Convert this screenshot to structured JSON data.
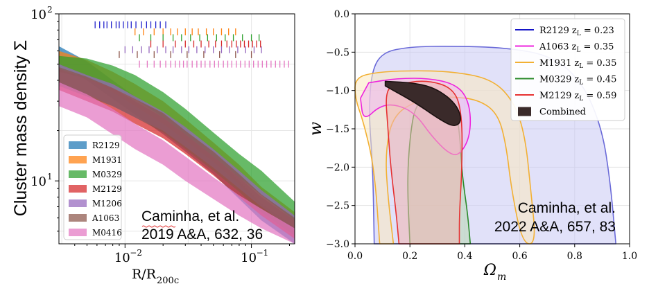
{
  "chart_data": [
    {
      "type": "area",
      "xlabel": "R/R",
      "xlabel_sub": "200c",
      "ylabel": "Cluster mass density Σ",
      "xscale": "log",
      "yscale": "log",
      "xlim": [
        0.003,
        0.22
      ],
      "ylim": [
        4.2,
        100
      ],
      "x_ticks": [
        {
          "v": 0.01,
          "base": "10",
          "exp": "−2"
        },
        {
          "v": 0.1,
          "base": "10",
          "exp": "−1"
        }
      ],
      "y_ticks": [
        {
          "v": 10,
          "base": "10",
          "exp": "1"
        },
        {
          "v": 100,
          "base": "10",
          "exp": "2"
        }
      ],
      "x_grid": [
        0.00316,
        0.01,
        0.0316,
        0.1
      ],
      "y_grid": [
        5,
        10,
        20,
        50,
        100
      ],
      "legend_position": "lower-left",
      "series": [
        {
          "name": "R2129",
          "color": "#1f77b4",
          "x": [
            0.003,
            0.005,
            0.008,
            0.012,
            0.02,
            0.03,
            0.05,
            0.08,
            0.12,
            0.22
          ],
          "lo": [
            50,
            40,
            31,
            25,
            19,
            15,
            11,
            7.8,
            5.8,
            4.2
          ],
          "hi": [
            64,
            52,
            40,
            32,
            25,
            20,
            14.5,
            10,
            7.3,
            5.3
          ]
        },
        {
          "name": "M1931",
          "color": "#ff7f0e",
          "x": [
            0.003,
            0.005,
            0.008,
            0.012,
            0.02,
            0.03,
            0.05,
            0.08,
            0.12,
            0.22
          ],
          "lo": [
            48,
            41,
            34,
            28,
            22,
            17.5,
            13,
            9.5,
            7,
            5
          ],
          "hi": [
            60,
            53,
            45,
            38,
            30,
            23.5,
            17,
            12.5,
            9.2,
            6.5
          ]
        },
        {
          "name": "M0329",
          "color": "#2ca02c",
          "x": [
            0.003,
            0.005,
            0.008,
            0.012,
            0.02,
            0.03,
            0.05,
            0.08,
            0.12,
            0.22
          ],
          "lo": [
            45,
            41,
            36,
            31,
            24,
            19,
            14,
            10.5,
            8.2,
            5.8
          ],
          "hi": [
            56,
            54,
            49,
            43,
            34,
            27,
            19.5,
            14.5,
            11.5,
            7.5
          ]
        },
        {
          "name": "M2129",
          "color": "#d62728",
          "x": [
            0.003,
            0.005,
            0.008,
            0.012,
            0.02,
            0.03,
            0.05,
            0.08,
            0.12,
            0.22
          ],
          "lo": [
            35,
            30,
            26,
            22,
            18,
            14.5,
            10.8,
            8,
            6.2,
            4.5
          ],
          "hi": [
            47,
            41,
            36,
            30,
            24,
            19,
            14,
            10.5,
            8,
            5.8
          ]
        },
        {
          "name": "M1206",
          "color": "#9467bd",
          "x": [
            0.003,
            0.005,
            0.008,
            0.012,
            0.02,
            0.03,
            0.05,
            0.08,
            0.12,
            0.22
          ],
          "lo": [
            38,
            33,
            28,
            24,
            20,
            16,
            12,
            9,
            7,
            5
          ],
          "hi": [
            50,
            43,
            38,
            32,
            26,
            21,
            15.5,
            11.5,
            8.8,
            6.2
          ]
        },
        {
          "name": "A1063",
          "color": "#8c564b",
          "x": [
            0.003,
            0.005,
            0.008,
            0.012,
            0.02,
            0.03,
            0.05,
            0.08,
            0.12,
            0.22
          ],
          "lo": [
            37,
            32,
            28,
            24,
            19.5,
            15.5,
            11.5,
            8.6,
            6.5,
            4.7
          ],
          "hi": [
            48,
            42,
            36,
            31,
            25.5,
            20,
            15,
            11,
            8.3,
            6
          ]
        },
        {
          "name": "M0416",
          "color": "#e377c2",
          "x": [
            0.003,
            0.005,
            0.008,
            0.012,
            0.02,
            0.03,
            0.05,
            0.08,
            0.12,
            0.22
          ],
          "lo": [
            28,
            24,
            19,
            15.5,
            12.5,
            10,
            7.8,
            6.2,
            5.2,
            4.2
          ],
          "hi": [
            39,
            33,
            27,
            22,
            17.5,
            14,
            10.5,
            8.2,
            6.8,
            5.2
          ]
        }
      ],
      "rug": [
        {
          "color": "#2222cc",
          "y": 86,
          "x": [
            0.0058,
            0.0063,
            0.0068,
            0.0072,
            0.0078,
            0.0085,
            0.009,
            0.0097,
            0.0105,
            0.0112,
            0.0122,
            0.0135,
            0.0148,
            0.016,
            0.0175,
            0.019,
            0.021
          ]
        },
        {
          "color": "#ff7f0e",
          "y": 78,
          "x": [
            0.012,
            0.014,
            0.017,
            0.02,
            0.023,
            0.026,
            0.03,
            0.034,
            0.038,
            0.044,
            0.05,
            0.058,
            0.066,
            0.075
          ]
        },
        {
          "color": "#2ca02c",
          "y": 72,
          "x": [
            0.013,
            0.016,
            0.02,
            0.024,
            0.028,
            0.033,
            0.039,
            0.045,
            0.053,
            0.062,
            0.072,
            0.085,
            0.1,
            0.115
          ]
        },
        {
          "color": "#d62728",
          "y": 66,
          "x": [
            0.016,
            0.02,
            0.025,
            0.03,
            0.035,
            0.04,
            0.046,
            0.052,
            0.058,
            0.064,
            0.07,
            0.076,
            0.082,
            0.088,
            0.095,
            0.102,
            0.11,
            0.118
          ]
        },
        {
          "color": "#9467bd",
          "y": 61,
          "x": [
            0.01,
            0.0115,
            0.0135,
            0.0155,
            0.018,
            0.021,
            0.024,
            0.028,
            0.032,
            0.037,
            0.043,
            0.05,
            0.058,
            0.067,
            0.078,
            0.09,
            0.105,
            0.12
          ]
        },
        {
          "color": "#8c564b",
          "y": 57,
          "x": [
            0.009,
            0.0125,
            0.017,
            0.023,
            0.031,
            0.042,
            0.056,
            0.075,
            0.1
          ]
        },
        {
          "color": "#e377c2",
          "y": 50,
          "x": [
            0.013,
            0.015,
            0.017,
            0.019,
            0.021,
            0.023,
            0.025,
            0.027,
            0.029,
            0.031,
            0.034,
            0.037,
            0.04,
            0.043,
            0.047,
            0.051,
            0.055,
            0.06,
            0.065,
            0.07,
            0.076,
            0.082,
            0.089,
            0.096,
            0.104,
            0.113,
            0.122,
            0.132,
            0.143,
            0.155,
            0.168,
            0.182,
            0.197
          ]
        }
      ],
      "annotation": [
        "Caminha, et al.",
        "2019 A&A, 632, 36"
      ]
    },
    {
      "type": "area",
      "xlabel": "Ω",
      "xlabel_sub": "m",
      "ylabel": "w",
      "xlim": [
        0,
        1
      ],
      "ylim": [
        -3,
        0
      ],
      "x_ticks": [
        0.0,
        0.2,
        0.4,
        0.6,
        0.8,
        1.0
      ],
      "x_tick_labels": [
        "0.0",
        "0.2",
        "0.4",
        "0.6",
        "0.8",
        "1.0"
      ],
      "y_ticks": [
        0.0,
        -0.5,
        -1.0,
        -1.5,
        -2.0,
        -2.5,
        -3.0
      ],
      "y_tick_labels": [
        "0.0",
        "−0.5",
        "−1.0",
        "−1.5",
        "−2.0",
        "−2.5",
        "−3.0"
      ],
      "grid": true,
      "legend_position": "upper-right",
      "legend": [
        {
          "cluster": "R2129",
          "z_sym": "z",
          "z_sub": "L",
          "z_val": " = 0.23",
          "color": "#1515c8",
          "kind": "line"
        },
        {
          "cluster": "A1063",
          "z_sym": "z",
          "z_sub": "L",
          "z_val": " = 0.35",
          "color": "#ee22dd",
          "kind": "line"
        },
        {
          "cluster": "M1931",
          "z_sym": "z",
          "z_sub": "L",
          "z_val": " = 0.35",
          "color": "#f2b033",
          "kind": "line"
        },
        {
          "cluster": "M0329",
          "z_sym": "z",
          "z_sub": "L",
          "z_val": " = 0.45",
          "color": "#2a8a2a",
          "kind": "line"
        },
        {
          "cluster": "M2129",
          "z_sym": "z",
          "z_sub": "L",
          "z_val": " = 0.59",
          "color": "#e63030",
          "kind": "line"
        },
        {
          "cluster": "Combined",
          "z_sym": "",
          "z_sub": "",
          "z_val": "",
          "color": "#3a2a2a",
          "kind": "patch"
        }
      ],
      "contours": [
        {
          "cluster": "R2129",
          "fill": "#c8c8f4",
          "stroke": "#6a6ad8",
          "outline": [
            [
              0.07,
              -3.0
            ],
            [
              0.065,
              -2.0
            ],
            [
              0.05,
              -1.3
            ],
            [
              0.06,
              -0.75
            ],
            [
              0.1,
              -0.5
            ],
            [
              0.2,
              -0.43
            ],
            [
              0.35,
              -0.42
            ],
            [
              0.55,
              -0.44
            ],
            [
              0.72,
              -0.55
            ],
            [
              0.83,
              -0.9
            ],
            [
              0.9,
              -1.5
            ],
            [
              0.93,
              -2.2
            ],
            [
              0.95,
              -3.0
            ]
          ]
        },
        {
          "cluster": "M1931",
          "fill": "#fbeac0",
          "stroke": "#f2b033",
          "outline": [
            [
              0.09,
              -3.0
            ],
            [
              0.07,
              -2.0
            ],
            [
              0.03,
              -1.4
            ],
            [
              0.0,
              -1.1
            ],
            [
              0.0,
              -0.83
            ],
            [
              0.08,
              -0.76
            ],
            [
              0.2,
              -0.74
            ],
            [
              0.35,
              -0.75
            ],
            [
              0.5,
              -0.85
            ],
            [
              0.58,
              -1.15
            ],
            [
              0.62,
              -1.6
            ],
            [
              0.64,
              -2.3
            ],
            [
              0.66,
              -3.0
            ],
            [
              0.61,
              -3.0
            ],
            [
              0.57,
              -2.3
            ],
            [
              0.55,
              -1.7
            ],
            [
              0.52,
              -1.3
            ],
            [
              0.45,
              -1.12
            ],
            [
              0.35,
              -1.08
            ],
            [
              0.25,
              -1.1
            ],
            [
              0.14,
              -1.3
            ],
            [
              0.11,
              -1.8
            ],
            [
              0.12,
              -2.4
            ],
            [
              0.14,
              -3.0
            ]
          ]
        },
        {
          "cluster": "M0329",
          "fill": "#b9d9b2",
          "stroke": "#2a8a2a",
          "outline": [
            [
              0.2,
              -3.0
            ],
            [
              0.19,
              -2.2
            ],
            [
              0.2,
              -1.6
            ],
            [
              0.22,
              -1.18
            ],
            [
              0.28,
              -1.02
            ],
            [
              0.36,
              -1.1
            ],
            [
              0.38,
              -1.5
            ],
            [
              0.39,
              -2.1
            ],
            [
              0.41,
              -2.6
            ],
            [
              0.42,
              -3.0
            ]
          ]
        },
        {
          "cluster": "A1063",
          "fill": "#f0b8ee",
          "stroke": "#ee22dd",
          "outline": [
            [
              0.02,
              -1.1
            ],
            [
              0.03,
              -1.4
            ],
            [
              0.09,
              -1.2
            ],
            [
              0.15,
              -1.18
            ],
            [
              0.22,
              -1.3
            ],
            [
              0.28,
              -1.6
            ],
            [
              0.34,
              -1.82
            ],
            [
              0.38,
              -1.85
            ],
            [
              0.42,
              -1.6
            ],
            [
              0.42,
              -1.2
            ],
            [
              0.38,
              -0.94
            ],
            [
              0.28,
              -0.84
            ],
            [
              0.15,
              -0.84
            ],
            [
              0.05,
              -0.9
            ]
          ]
        },
        {
          "cluster": "M2129",
          "fill": "#f0b4ae",
          "stroke": "#e63030",
          "outline": [
            [
              0.16,
              -3.0
            ],
            [
              0.15,
              -2.6
            ],
            [
              0.13,
              -2.0
            ],
            [
              0.12,
              -1.5
            ],
            [
              0.11,
              -1.0
            ],
            [
              0.15,
              -0.92
            ],
            [
              0.26,
              -0.86
            ],
            [
              0.36,
              -0.97
            ],
            [
              0.39,
              -1.3
            ],
            [
              0.39,
              -2.0
            ],
            [
              0.38,
              -2.6
            ],
            [
              0.38,
              -3.0
            ]
          ]
        },
        {
          "cluster": "Combined",
          "fill": "#3a2a2a",
          "stroke": "#1a1010",
          "outline": [
            [
              0.11,
              -0.88
            ],
            [
              0.22,
              -0.9
            ],
            [
              0.3,
              -0.98
            ],
            [
              0.37,
              -1.18
            ],
            [
              0.39,
              -1.4
            ],
            [
              0.36,
              -1.48
            ],
            [
              0.3,
              -1.36
            ],
            [
              0.22,
              -1.16
            ],
            [
              0.14,
              -1.0
            ],
            [
              0.11,
              -0.94
            ]
          ]
        }
      ],
      "annotation": [
        "Caminha, et al.",
        "2022 A&A, 657, 83"
      ]
    }
  ]
}
